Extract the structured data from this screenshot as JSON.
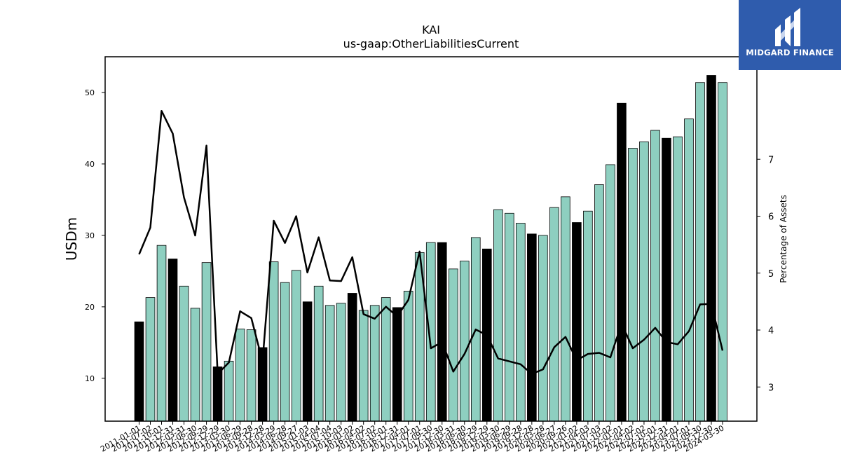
{
  "brand": {
    "name": "MIDGARD FINANCE",
    "logo_icon": "midgard-logo-icon",
    "bg_color": "#2f5cad"
  },
  "chart_data": {
    "type": "bar",
    "title": "KAI",
    "subtitle": "us-gaap:OtherLiabilitiesCurrent",
    "ylabel": "USDm",
    "y2label": "Percentage of Assets",
    "ylim": [
      4,
      55
    ],
    "y2lim": [
      2.4,
      8.8
    ],
    "yticks": [
      10,
      20,
      30,
      40,
      50
    ],
    "y2ticks": [
      3,
      4,
      5,
      6,
      7
    ],
    "bar_color": "#8ecfc0",
    "highlight_color": "#000000",
    "line_color": "#000000",
    "grid": false,
    "categories": [
      "2011-01-01",
      "2011-07-02",
      "2011-10-01",
      "2011-12-31",
      "2012-03-31",
      "2012-06-30",
      "2012-09-29",
      "2012-12-29",
      "2013-03-30",
      "2013-06-29",
      "2013-09-28",
      "2013-12-28",
      "2014-03-29",
      "2014-06-28",
      "2014-09-27",
      "2015-01-03",
      "2015-04-04",
      "2015-07-04",
      "2015-10-03",
      "2016-01-02",
      "2016-04-02",
      "2016-07-02",
      "2016-10-01",
      "2016-12-31",
      "2017-04-01",
      "2017-07-01",
      "2017-09-30",
      "2017-12-30",
      "2018-03-31",
      "2018-06-30",
      "2018-09-29",
      "2018-12-29",
      "2019-03-30",
      "2019-06-29",
      "2019-09-28",
      "2019-12-28",
      "2020-03-28",
      "2020-06-27",
      "2020-09-26",
      "2021-01-02",
      "2021-04-03",
      "2021-07-03",
      "2021-10-02",
      "2022-01-01",
      "2022-04-02",
      "2022-07-02",
      "2022-10-01",
      "2022-12-31",
      "2023-04-01",
      "2023-07-01",
      "2023-09-30",
      "2023-12-30",
      "2024-03-30"
    ],
    "series": [
      {
        "type": "bar",
        "values": [
          17.9,
          21.3,
          28.6,
          26.7,
          22.9,
          19.8,
          26.2,
          11.6,
          12.4,
          16.9,
          16.8,
          14.3,
          26.3,
          23.4,
          25.1,
          20.7,
          22.9,
          20.2,
          20.5,
          21.9,
          19.5,
          20.2,
          21.3,
          19.9,
          22.2,
          27.6,
          29.0,
          29.0,
          25.3,
          26.4,
          29.7,
          28.1,
          33.6,
          33.1,
          31.7,
          30.2,
          30.0,
          33.9,
          35.4,
          31.8,
          33.4,
          37.1,
          39.9,
          48.5,
          42.2,
          43.1,
          44.7,
          43.6,
          43.8,
          46.3,
          51.4,
          52.4,
          51.4
        ],
        "highlight": [
          true,
          false,
          false,
          true,
          false,
          false,
          false,
          true,
          false,
          false,
          false,
          true,
          false,
          false,
          false,
          true,
          false,
          false,
          false,
          true,
          false,
          false,
          false,
          true,
          false,
          false,
          false,
          true,
          false,
          false,
          false,
          true,
          false,
          false,
          false,
          true,
          false,
          false,
          false,
          true,
          false,
          false,
          false,
          true,
          false,
          false,
          false,
          true,
          false,
          false,
          false,
          true,
          false
        ]
      },
      {
        "type": "line",
        "axis": "right",
        "values": [
          5.33,
          5.8,
          7.85,
          7.45,
          6.33,
          5.66,
          7.24,
          3.23,
          3.43,
          4.33,
          4.21,
          3.45,
          5.92,
          5.53,
          6.0,
          5.01,
          5.63,
          4.87,
          4.86,
          5.28,
          4.28,
          4.2,
          4.41,
          4.24,
          4.53,
          5.38,
          3.68,
          3.79,
          3.27,
          3.58,
          4.01,
          3.91,
          3.5,
          3.45,
          3.4,
          3.23,
          3.31,
          3.7,
          3.88,
          3.47,
          3.58,
          3.6,
          3.52,
          4.11,
          3.68,
          3.83,
          4.04,
          3.79,
          3.75,
          3.98,
          4.45,
          4.46,
          3.64
        ]
      }
    ]
  }
}
